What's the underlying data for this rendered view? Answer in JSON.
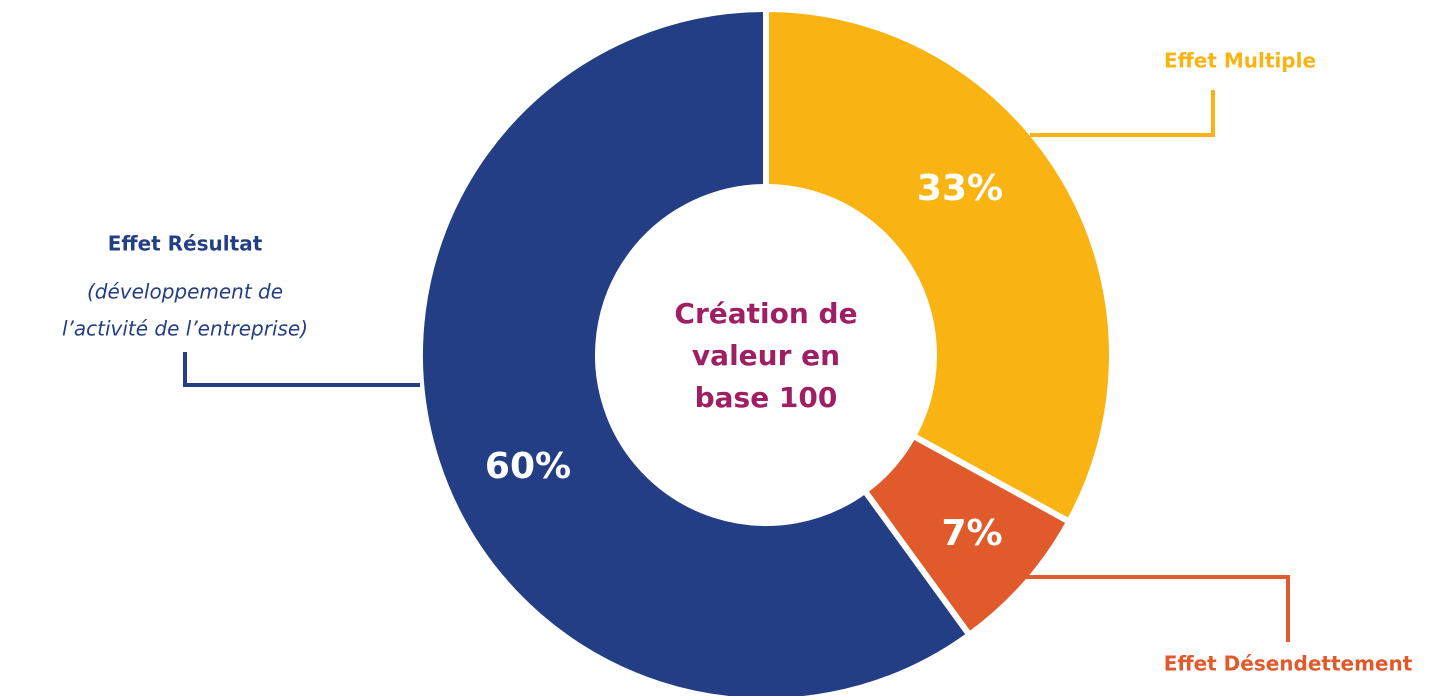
{
  "chart_data": {
    "type": "donut",
    "categories": [
      "Effet Multiple",
      "Effet Désendettement",
      "Effet Résultat"
    ],
    "values": [
      33,
      7,
      60
    ],
    "value_labels": [
      "33%",
      "7%",
      "60%"
    ],
    "colors": [
      "#F9B414",
      "#E05A2B",
      "#233E84"
    ],
    "center_label": [
      "Création de",
      "valeur en",
      "base 100"
    ],
    "center_color": "#9E1F63",
    "category_notes": {
      "2": [
        "(développement de",
        "l’activité de l’entreprise)"
      ]
    }
  }
}
